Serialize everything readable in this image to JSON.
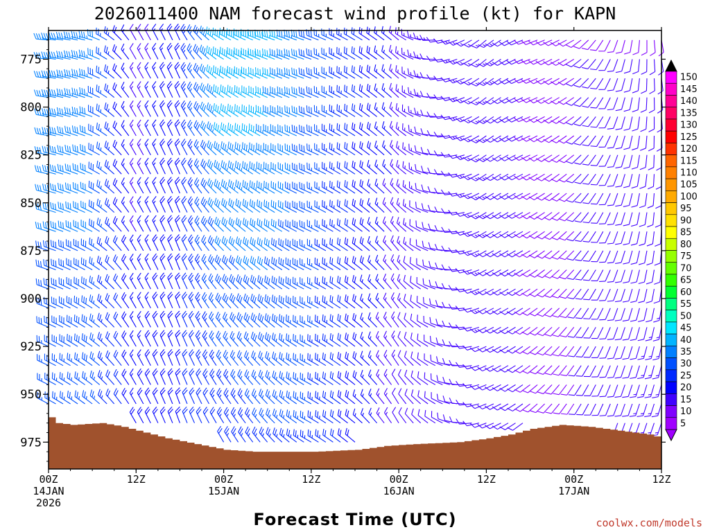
{
  "chart_data": {
    "type": "wind-barb-profile",
    "title": "2026011400 NAM forecast wind profile (kt) for KAPN",
    "xlabel": "Forecast Time (UTC)",
    "ylabel": "",
    "x_ticks": [
      {
        "hour": 0,
        "label": "00Z",
        "date": "14JAN",
        "year": "2026"
      },
      {
        "hour": 12,
        "label": "12Z",
        "date": "",
        "year": ""
      },
      {
        "hour": 24,
        "label": "00Z",
        "date": "15JAN",
        "year": ""
      },
      {
        "hour": 36,
        "label": "12Z",
        "date": "",
        "year": ""
      },
      {
        "hour": 48,
        "label": "00Z",
        "date": "16JAN",
        "year": ""
      },
      {
        "hour": 60,
        "label": "12Z",
        "date": "",
        "year": ""
      },
      {
        "hour": 72,
        "label": "00Z",
        "date": "17JAN",
        "year": ""
      },
      {
        "hour": 84,
        "label": "12Z",
        "date": "",
        "year": ""
      }
    ],
    "xlim": [
      0,
      84
    ],
    "y_ticks": [
      775,
      800,
      825,
      850,
      875,
      900,
      925,
      950,
      975
    ],
    "ylim_hpa": [
      989,
      760
    ],
    "pressure_levels": [
      765,
      775,
      785,
      795,
      805,
      815,
      825,
      835,
      845,
      855,
      865,
      875,
      885,
      895,
      905,
      915,
      925,
      935,
      945,
      955,
      965,
      975
    ],
    "time_step_hours": 1,
    "surface_pressure_keyframes": [
      {
        "hour": 0,
        "p": 962
      },
      {
        "hour": 1,
        "p": 965
      },
      {
        "hour": 3,
        "p": 966
      },
      {
        "hour": 7,
        "p": 965
      },
      {
        "hour": 10,
        "p": 967
      },
      {
        "hour": 13,
        "p": 970
      },
      {
        "hour": 16,
        "p": 973
      },
      {
        "hour": 20,
        "p": 976
      },
      {
        "hour": 24,
        "p": 979
      },
      {
        "hour": 28,
        "p": 980
      },
      {
        "hour": 36,
        "p": 980
      },
      {
        "hour": 42,
        "p": 979
      },
      {
        "hour": 46,
        "p": 977
      },
      {
        "hour": 50,
        "p": 976
      },
      {
        "hour": 56,
        "p": 975
      },
      {
        "hour": 60,
        "p": 973
      },
      {
        "hour": 63,
        "p": 971
      },
      {
        "hour": 66,
        "p": 968
      },
      {
        "hour": 70,
        "p": 966
      },
      {
        "hour": 74,
        "p": 967
      },
      {
        "hour": 78,
        "p": 969
      },
      {
        "hour": 82,
        "p": 971
      },
      {
        "hour": 84,
        "p": 973
      }
    ],
    "wind_keyframes": [
      {
        "hour": 0,
        "dir_low": 300,
        "dir_high": 275,
        "spd_low": 25,
        "spd_high": 35
      },
      {
        "hour": 6,
        "dir_low": 310,
        "dir_high": 285,
        "spd_low": 26,
        "spd_high": 34
      },
      {
        "hour": 12,
        "dir_low": 330,
        "dir_high": 330,
        "spd_low": 18,
        "spd_high": 12
      },
      {
        "hour": 18,
        "dir_low": 340,
        "dir_high": 335,
        "spd_low": 20,
        "spd_high": 20
      },
      {
        "hour": 24,
        "dir_low": 330,
        "dir_high": 300,
        "spd_low": 22,
        "spd_high": 40
      },
      {
        "hour": 30,
        "dir_low": 320,
        "dir_high": 290,
        "spd_low": 25,
        "spd_high": 38
      },
      {
        "hour": 36,
        "dir_low": 300,
        "dir_high": 290,
        "spd_low": 25,
        "spd_high": 30
      },
      {
        "hour": 42,
        "dir_low": 310,
        "dir_high": 300,
        "spd_low": 18,
        "spd_high": 22
      },
      {
        "hour": 48,
        "dir_low": 330,
        "dir_high": 310,
        "spd_low": 12,
        "spd_high": 15
      },
      {
        "hour": 54,
        "dir_low": 300,
        "dir_high": 260,
        "spd_low": 10,
        "spd_high": 12
      },
      {
        "hour": 60,
        "dir_low": 250,
        "dir_high": 230,
        "spd_low": 12,
        "spd_high": 14
      },
      {
        "hour": 66,
        "dir_low": 230,
        "dir_high": 250,
        "spd_low": 10,
        "spd_high": 10
      },
      {
        "hour": 72,
        "dir_low": 210,
        "dir_high": 240,
        "spd_low": 10,
        "spd_high": 10
      },
      {
        "hour": 78,
        "dir_low": 200,
        "dir_high": 200,
        "spd_low": 12,
        "spd_high": 10
      },
      {
        "hour": 84,
        "dir_low": 200,
        "dir_high": 170,
        "spd_low": 14,
        "spd_high": 10
      }
    ],
    "colorbar": {
      "label_values": [
        "150",
        "145",
        "140",
        "135",
        "130",
        "125",
        "120",
        "115",
        "110",
        "105",
        "100",
        "95",
        "90",
        "85",
        "80",
        "75",
        "70",
        "65",
        "60",
        "55",
        "50",
        "45",
        "40",
        "35",
        "30",
        "25",
        "20",
        "15",
        "10",
        "5"
      ],
      "colors": [
        "#ff00ff",
        "#ff00c8",
        "#ff0096",
        "#ff0064",
        "#ff0032",
        "#ff0000",
        "#ff3200",
        "#ff6400",
        "#ff8000",
        "#ff9600",
        "#ffaa00",
        "#ffc800",
        "#ffe100",
        "#ffff00",
        "#c8ff00",
        "#96ff00",
        "#64ff00",
        "#32ff00",
        "#00ff32",
        "#00ff80",
        "#00ffc0",
        "#00e6ff",
        "#00b4ff",
        "#0080ff",
        "#0050ff",
        "#0028ff",
        "#0000ff",
        "#4000ff",
        "#8000ff",
        "#a000ff"
      ]
    },
    "terrain_color": "#a0522d",
    "credit": "coolwx.com/models"
  }
}
